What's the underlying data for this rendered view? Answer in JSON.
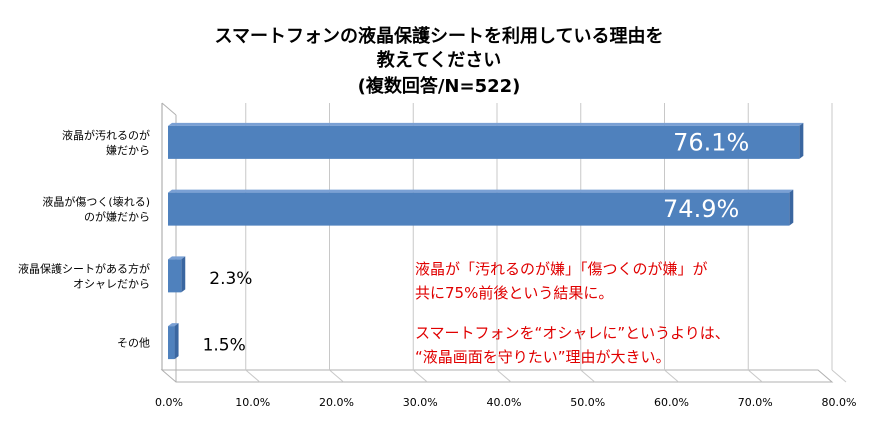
{
  "title_lines": [
    "スマートフォンの液晶保護シートを利用している理由を",
    "教えてください",
    "(複数回答/N=522)"
  ],
  "annotations": [
    "液晶が「汚れるのが嫌」「傷つくのが嫌」が",
    "共に75%前後という結果に。",
    "スマートフォンを“オシャレに”というよりは、",
    "“液晶画面を守りたい”理由が大きい。"
  ],
  "colors": {
    "bar": "#4f81bd",
    "bar_side": "#3a66a0",
    "bar_top": "#7aa0d4",
    "annotation": "#e00000"
  },
  "chart_data": {
    "type": "bar",
    "orientation": "horizontal",
    "categories": [
      [
        "液晶が汚れるのが",
        "嫌だから"
      ],
      [
        "液晶が傷つく(壊れる)",
        "のが嫌だから"
      ],
      [
        "液晶保護シートがある方が",
        "オシャレだから"
      ],
      [
        "その他"
      ]
    ],
    "values": [
      76.1,
      74.9,
      2.3,
      1.5
    ],
    "value_labels": [
      "76.1%",
      "74.9%",
      "2.3%",
      "1.5%"
    ],
    "xlim": [
      0,
      80
    ],
    "x_ticks": [
      "0.0%",
      "10.0%",
      "20.0%",
      "30.0%",
      "40.0%",
      "50.0%",
      "60.0%",
      "70.0%",
      "80.0%"
    ],
    "grid": true
  }
}
